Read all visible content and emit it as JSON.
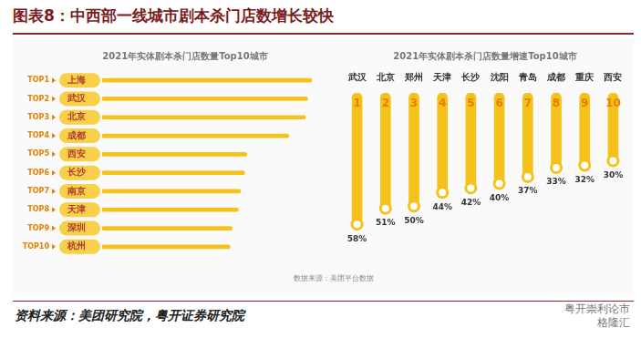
{
  "title": "图表8：中西部一线城市剧本杀门店数增长较快",
  "source": "资料来源：美团研究院，粤开证券研究院",
  "data_source": "数据来源：美团平台数据",
  "watermark": [
    "粤开崇利论市",
    "格隆汇"
  ],
  "chart_data": [
    {
      "type": "bar",
      "orientation": "horizontal",
      "title": "2021年实体剧本杀门店数量Top10城市",
      "ranks": [
        "TOP1",
        "TOP2",
        "TOP3",
        "TOP4",
        "TOP5",
        "TOP6",
        "TOP7",
        "TOP8",
        "TOP9",
        "TOP10"
      ],
      "categories": [
        "上海",
        "武汉",
        "北京",
        "成都",
        "西安",
        "长沙",
        "南京",
        "天津",
        "深圳",
        "杭州"
      ],
      "values": [
        100,
        98,
        97,
        89,
        69,
        68,
        66,
        65,
        62,
        61
      ],
      "xlim": [
        0,
        100
      ],
      "tick_labels": "y",
      "grid": false,
      "color": "#f5c21b"
    },
    {
      "type": "bar",
      "title": "2021年实体剧本杀门店数量增速Top10城市",
      "ranks": [
        "1",
        "2",
        "3",
        "4",
        "5",
        "6",
        "7",
        "8",
        "9",
        "10"
      ],
      "categories": [
        "武汉",
        "北京",
        "郑州",
        "天津",
        "长沙",
        "沈阳",
        "青岛",
        "成都",
        "重庆",
        "西安"
      ],
      "values": [
        58,
        51,
        50,
        44,
        42,
        40,
        37,
        33,
        32,
        30
      ],
      "value_labels": [
        "58%",
        "51%",
        "50%",
        "44%",
        "42%",
        "40%",
        "37%",
        "33%",
        "32%",
        "30%"
      ],
      "ylim": [
        0,
        70
      ],
      "tick_labels": "x",
      "data_labels": true,
      "grid": false,
      "color": "#f5c21b"
    }
  ]
}
